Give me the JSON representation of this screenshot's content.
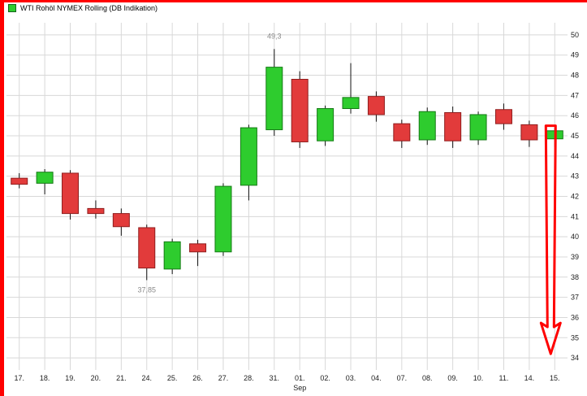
{
  "legend": {
    "label": "WTI Rohöl NYMEX Rolling (DB Indikation)",
    "marker_color": "#2ecc2e"
  },
  "annotation_frame_color": "#ff0000",
  "chart_data": {
    "type": "candlestick",
    "title": "WTI Rohöl NYMEX Rolling (DB Indikation)",
    "ylim": [
      33.4,
      50.6
    ],
    "y_ticks": [
      50,
      49,
      48,
      47,
      46,
      45,
      44,
      43,
      42,
      41,
      40,
      39,
      38,
      37,
      36,
      35,
      34
    ],
    "grid": true,
    "legend_position": "top-left",
    "month_label": {
      "text": "Sep",
      "under_label": "01."
    },
    "annotations": [
      {
        "text": "49,3",
        "value": 49.3,
        "candle_label": "31.",
        "placement": "above"
      },
      {
        "text": "37,85",
        "value": 37.85,
        "candle_label": "24.",
        "placement": "below"
      }
    ],
    "colors": {
      "up": "#2ecc2e",
      "up_border": "#157a15",
      "down": "#e23b3b",
      "down_border": "#8f1d1d",
      "wick": "#111111",
      "grid": "#d8d8d8",
      "axis_text": "#222222",
      "annotation_text": "#8a8a8a"
    },
    "series": [
      {
        "name": "WTI Rohöl NYMEX Rolling",
        "candles": [
          {
            "x": "17.",
            "open": 42.9,
            "high": 43.15,
            "low": 42.4,
            "close": 42.6
          },
          {
            "x": "18.",
            "open": 42.65,
            "high": 43.35,
            "low": 42.1,
            "close": 43.2
          },
          {
            "x": "19.",
            "open": 43.15,
            "high": 43.3,
            "low": 40.85,
            "close": 41.15
          },
          {
            "x": "20.",
            "open": 41.4,
            "high": 41.8,
            "low": 40.9,
            "close": 41.15
          },
          {
            "x": "21.",
            "open": 41.15,
            "high": 41.4,
            "low": 40.05,
            "close": 40.5
          },
          {
            "x": "24.",
            "open": 40.45,
            "high": 40.6,
            "low": 37.85,
            "close": 38.45
          },
          {
            "x": "25.",
            "open": 38.4,
            "high": 39.9,
            "low": 38.15,
            "close": 39.75
          },
          {
            "x": "26.",
            "open": 39.65,
            "high": 39.85,
            "low": 38.55,
            "close": 39.25
          },
          {
            "x": "27.",
            "open": 39.25,
            "high": 42.65,
            "low": 39.05,
            "close": 42.5
          },
          {
            "x": "28.",
            "open": 42.55,
            "high": 45.55,
            "low": 41.8,
            "close": 45.4
          },
          {
            "x": "31.",
            "open": 45.3,
            "high": 49.3,
            "low": 45.0,
            "close": 48.4
          },
          {
            "x": "01.",
            "open": 47.8,
            "high": 48.2,
            "low": 44.4,
            "close": 44.7
          },
          {
            "x": "02.",
            "open": 44.75,
            "high": 46.5,
            "low": 44.5,
            "close": 46.35
          },
          {
            "x": "03.",
            "open": 46.35,
            "high": 48.6,
            "low": 46.1,
            "close": 46.9
          },
          {
            "x": "04.",
            "open": 46.95,
            "high": 47.2,
            "low": 45.7,
            "close": 46.05
          },
          {
            "x": "07.",
            "open": 45.6,
            "high": 45.8,
            "low": 44.4,
            "close": 44.75
          },
          {
            "x": "08.",
            "open": 44.8,
            "high": 46.4,
            "low": 44.55,
            "close": 46.2
          },
          {
            "x": "09.",
            "open": 46.15,
            "high": 46.45,
            "low": 44.4,
            "close": 44.75
          },
          {
            "x": "10.",
            "open": 44.8,
            "high": 46.2,
            "low": 44.55,
            "close": 46.05
          },
          {
            "x": "11.",
            "open": 46.3,
            "high": 46.6,
            "low": 45.3,
            "close": 45.6
          },
          {
            "x": "14.",
            "open": 45.55,
            "high": 45.75,
            "low": 44.45,
            "close": 44.8
          },
          {
            "x": "15.",
            "open": 44.85,
            "high": 45.4,
            "low": 44.45,
            "close": 45.25
          }
        ]
      }
    ],
    "drawn_annotation": {
      "type": "arrow-down",
      "color": "#ff0000",
      "from_price": 45.5,
      "to_price": 34.2
    }
  }
}
